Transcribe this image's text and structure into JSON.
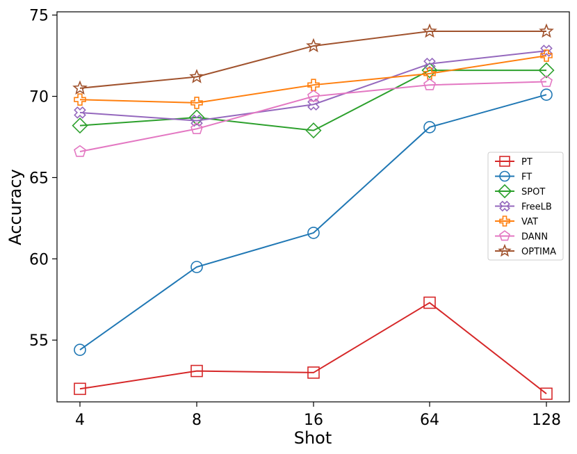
{
  "chart_data": {
    "type": "line",
    "title": "",
    "xlabel": "Shot",
    "ylabel": "Accuracy",
    "categories": [
      "4",
      "8",
      "16",
      "64",
      "128"
    ],
    "ylim": [
      51.2,
      75.2
    ],
    "yticks": [
      55,
      60,
      65,
      70,
      75
    ],
    "legend_position": "center-right",
    "series": [
      {
        "name": "PT",
        "color": "#d62728",
        "marker": "square",
        "values": [
          52.0,
          53.1,
          53.0,
          57.3,
          51.7
        ]
      },
      {
        "name": "FT",
        "color": "#1f77b4",
        "marker": "circle",
        "values": [
          54.4,
          59.5,
          61.6,
          68.1,
          70.1
        ]
      },
      {
        "name": "SPOT",
        "color": "#2ca02c",
        "marker": "diamond",
        "values": [
          68.2,
          68.7,
          67.9,
          71.6,
          71.6
        ]
      },
      {
        "name": "FreeLB",
        "color": "#9467bd",
        "marker": "x",
        "values": [
          69.0,
          68.5,
          69.5,
          72.0,
          72.8
        ]
      },
      {
        "name": "VAT",
        "color": "#ff7f0e",
        "marker": "plus",
        "values": [
          69.8,
          69.6,
          70.7,
          71.4,
          72.5
        ]
      },
      {
        "name": "DANN",
        "color": "#e377c2",
        "marker": "pentagon",
        "values": [
          66.6,
          68.0,
          70.0,
          70.7,
          70.9
        ]
      },
      {
        "name": "OPTIMA",
        "color": "#a0522d",
        "marker": "star",
        "values": [
          70.5,
          71.2,
          73.1,
          74.0,
          74.0
        ]
      }
    ]
  }
}
